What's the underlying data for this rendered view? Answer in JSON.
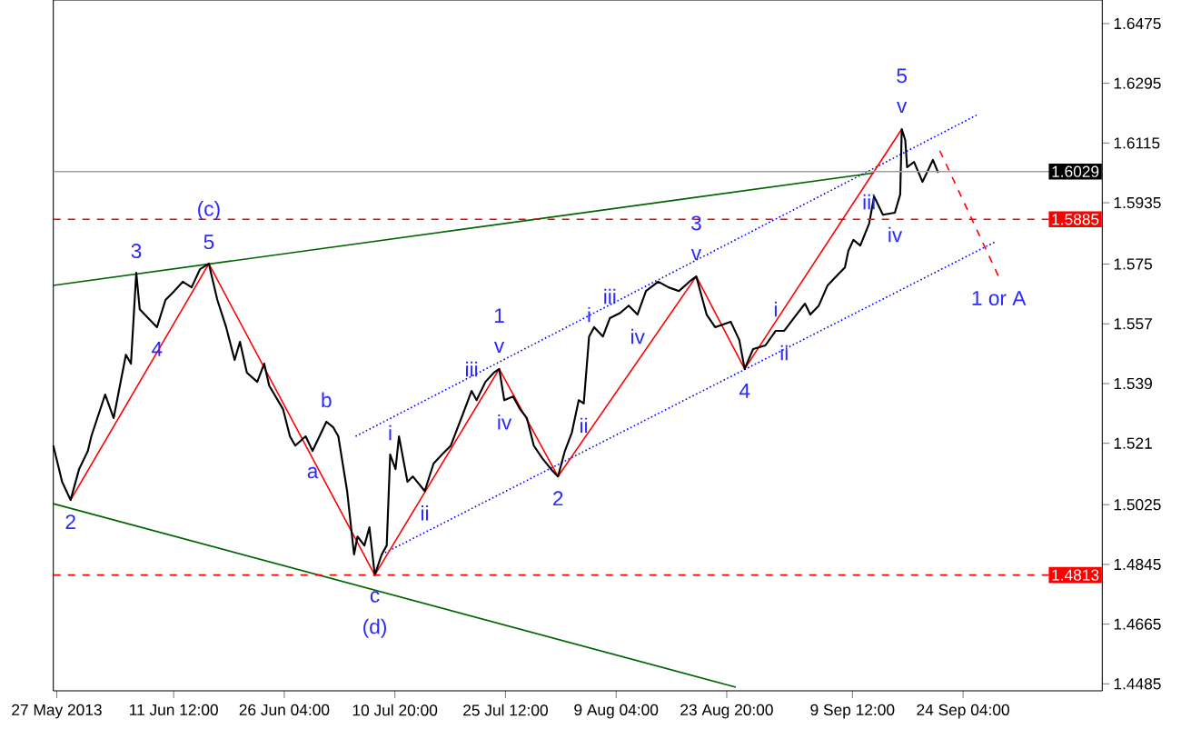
{
  "chart_data": {
    "type": "line",
    "xlim": [
      "2013-05-26T13:00",
      "2013-10-12T15:00"
    ],
    "ylim": [
      1.4464,
      1.6546
    ],
    "xticks": [
      {
        "value": "2013-05-27T00:00",
        "label": "27 May 2013"
      },
      {
        "value": "2013-06-11T12:00",
        "label": "11 Jun 12:00"
      },
      {
        "value": "2013-06-26T04:00",
        "label": "26 Jun 04:00"
      },
      {
        "value": "2013-07-10T20:00",
        "label": "10 Jul 20:00"
      },
      {
        "value": "2013-07-25T12:00",
        "label": "25 Jul 12:00"
      },
      {
        "value": "2013-08-09T04:00",
        "label": "9 Aug 04:00"
      },
      {
        "value": "2013-08-23T20:00",
        "label": "23 Aug 20:00"
      },
      {
        "value": "2013-09-09T12:00",
        "label": "9 Sep 12:00"
      },
      {
        "value": "2013-09-24T04:00",
        "label": "24 Sep 04:00"
      }
    ],
    "yticks": [
      1.4485,
      1.4665,
      1.4845,
      1.5025,
      1.521,
      1.539,
      1.557,
      1.575,
      1.5935,
      1.6115,
      1.6295,
      1.6475
    ],
    "series": [
      {
        "color": "#006400",
        "line_style": "solid",
        "x": [
          "2013-05-26T13:00",
          "2013-09-12T09:00"
        ],
        "values": [
          1.5686,
          1.6025
        ]
      },
      {
        "color": "#006400",
        "line_style": "solid",
        "x": [
          "2013-05-26T13:00",
          "2013-08-25T01:00"
        ],
        "values": [
          1.5028,
          1.4475
        ]
      },
      {
        "color": "#0000ff",
        "line_style": "dotted",
        "x": [
          "2013-07-05T15:00",
          "2013-09-26T03:00"
        ],
        "values": [
          1.5231,
          1.6201
        ]
      },
      {
        "color": "#0000ff",
        "line_style": "dotted",
        "x": [
          "2013-07-09T02:00",
          "2013-09-28T10:00"
        ],
        "values": [
          1.4875,
          1.5817
        ]
      },
      {
        "color": "#ff0000",
        "line_style": "solid",
        "x": [
          "2013-05-28T20:00",
          "2013-06-16T04:00",
          "2013-07-08T04:00",
          "2013-07-24T16:00",
          "2013-08-01T11:00",
          "2013-08-19T19:00",
          "2013-08-26T05:00",
          "2013-09-16T01:00"
        ],
        "values": [
          1.5039,
          1.5751,
          1.4813,
          1.5434,
          1.511,
          1.5713,
          1.5434,
          1.6157
        ]
      },
      {
        "color": "#ff0000",
        "line_style": "dashed",
        "x": [
          "2013-09-21T02:00",
          "2013-09-28T21:00"
        ],
        "values": [
          1.6092,
          1.5713
        ]
      },
      {
        "color": "#000000",
        "line_style": "solid",
        "x": [
          "2013-05-26T13:00",
          "2013-05-27T17:00",
          "2013-05-28T20:00",
          "2013-05-29T23:00",
          "2013-05-31T03:00",
          "2013-05-31T14:00",
          "2013-06-02T10:00",
          "2013-06-03T13:00",
          "2013-06-05T04:00",
          "2013-06-05T20:00",
          "2013-06-06T13:00",
          "2013-06-07T00:00",
          "2013-06-08T03:00",
          "2013-06-09T07:00",
          "2013-06-10T10:00",
          "2013-06-11T14:00",
          "2013-06-12T17:00",
          "2013-06-13T21:00",
          "2013-06-15T00:00",
          "2013-06-16T04:00",
          "2013-06-17T07:00",
          "2013-06-18T11:00",
          "2013-06-19T14:00",
          "2013-06-20T07:00",
          "2013-06-21T05:00",
          "2013-06-22T14:00",
          "2013-06-23T12:00",
          "2013-06-24T04:00",
          "2013-06-26T00:00",
          "2013-06-26T22:00",
          "2013-06-27T15:00",
          "2013-06-29T00:00",
          "2013-06-29T22:00",
          "2013-07-01T18:00",
          "2013-07-02T16:00",
          "2013-07-03T08:00",
          "2013-07-04T12:00",
          "2013-07-05T10:00",
          "2013-07-05T21:00",
          "2013-07-06T19:00",
          "2013-07-07T11:00",
          "2013-07-08T04:00",
          "2013-07-09T02:00",
          "2013-07-09T18:00",
          "2013-07-10T05:00",
          "2013-07-10T22:00",
          "2013-07-11T09:00",
          "2013-07-12T12:00",
          "2013-07-13T05:00",
          "2013-07-14T19:00",
          "2013-07-15T23:00",
          "2013-07-17T02:00",
          "2013-07-18T06:00",
          "2013-07-19T20:00",
          "2013-07-21T00:00",
          "2013-07-21T16:00",
          "2013-07-22T20:00",
          "2013-07-23T23:00",
          "2013-07-24T16:00",
          "2013-07-25T08:00",
          "2013-07-26T12:00",
          "2013-07-27T10:00",
          "2013-07-28T08:00",
          "2013-07-29T06:00",
          "2013-07-30T09:00",
          "2013-07-31T13:00",
          "2013-08-01T11:00",
          "2013-08-02T09:00",
          "2013-08-03T07:00",
          "2013-08-04T05:00",
          "2013-08-04T21:00",
          "2013-08-05T14:00",
          "2013-08-06T06:00",
          "2013-08-07T10:00",
          "2013-08-08T08:00",
          "2013-08-09T17:00",
          "2013-08-10T20:00",
          "2013-08-12T00:00",
          "2013-08-13T03:00",
          "2013-08-14T18:00",
          "2013-08-16T03:00",
          "2013-08-17T12:00",
          "2013-08-18T21:00",
          "2013-08-19T19:00",
          "2013-08-21T04:00",
          "2013-08-22T07:00",
          "2013-08-24T09:00",
          "2013-08-25T12:00",
          "2013-08-26T05:00",
          "2013-08-27T08:00",
          "2013-08-28T23:00",
          "2013-08-30T08:00",
          "2013-08-31T11:00",
          "2013-09-02T02:00",
          "2013-09-03T05:00",
          "2013-09-03T22:00",
          "2013-09-05T01:00",
          "2013-09-06T05:00",
          "2013-09-07T03:00",
          "2013-09-08T12:00",
          "2013-09-08T23:00",
          "2013-09-09T15:00",
          "2013-09-10T13:00",
          "2013-09-11T17:00",
          "2013-09-12T09:00",
          "2013-09-13T13:00",
          "2013-09-15T03:00",
          "2013-09-15T20:00",
          "2013-09-16T01:00",
          "2013-09-16T12:00",
          "2013-09-16T18:00",
          "2013-09-17T16:00",
          "2013-09-18T19:00",
          "2013-09-19T17:00",
          "2013-09-20T04:00",
          "2013-09-20T21:00"
        ],
        "values": [
          1.5203,
          1.5094,
          1.5039,
          1.5132,
          1.5187,
          1.5231,
          1.5357,
          1.5286,
          1.5477,
          1.545,
          1.5724,
          1.5614,
          1.5587,
          1.556,
          1.5642,
          1.5669,
          1.5697,
          1.568,
          1.5735,
          1.5751,
          1.5642,
          1.556,
          1.5461,
          1.5516,
          1.5423,
          1.5395,
          1.545,
          1.5384,
          1.5313,
          1.5231,
          1.5203,
          1.5231,
          1.5187,
          1.5275,
          1.5258,
          1.5231,
          1.5066,
          1.4875,
          1.4929,
          1.4902,
          1.4957,
          1.4813,
          1.4875,
          1.4902,
          1.5176,
          1.5132,
          1.5231,
          1.5094,
          1.511,
          1.5066,
          1.5149,
          1.5176,
          1.5203,
          1.5297,
          1.5368,
          1.534,
          1.5395,
          1.5423,
          1.5434,
          1.534,
          1.5351,
          1.5313,
          1.5286,
          1.5203,
          1.5165,
          1.5132,
          1.511,
          1.5187,
          1.5242,
          1.534,
          1.533,
          1.5532,
          1.556,
          1.5532,
          1.5587,
          1.5603,
          1.5625,
          1.5598,
          1.5669,
          1.5697,
          1.568,
          1.5669,
          1.5697,
          1.5713,
          1.5598,
          1.556,
          1.5576,
          1.5521,
          1.5434,
          1.5494,
          1.5505,
          1.5549,
          1.5549,
          1.5598,
          1.5631,
          1.5598,
          1.5625,
          1.5686,
          1.5708,
          1.574,
          1.579,
          1.5823,
          1.5806,
          1.5872,
          1.5954,
          1.5899,
          1.5905,
          1.596,
          1.6157,
          1.6124,
          1.6042,
          1.6058,
          1.5998,
          1.6042,
          1.6064,
          1.6025
        ]
      }
    ],
    "ref_lines": [
      {
        "axis": "y",
        "value": 1.6029,
        "label": "1.6029",
        "color": "#a0a0a0",
        "line_style": "solid"
      },
      {
        "axis": "y",
        "value": 1.5885,
        "label": "1.5885",
        "color": "#ff0000",
        "line_style": "dashed"
      },
      {
        "axis": "y",
        "value": 1.4813,
        "label": "1.4813",
        "color": "#ff0000",
        "line_style": "dashed"
      }
    ],
    "annotations": [
      {
        "text": "2",
        "x": "2013-05-28T20:00",
        "y": 1.5039
      },
      {
        "text": "3",
        "x": "2013-06-06T13:00",
        "y": 1.5724
      },
      {
        "text": "4",
        "x": "2013-06-09T07:00",
        "y": 1.556
      },
      {
        "text": "5",
        "x": "2013-06-16T04:00",
        "y": 1.5751
      },
      {
        "text": "(c)",
        "x": "2013-06-16T04:00",
        "y": 1.5751
      },
      {
        "text": "a",
        "x": "2013-06-29T22:00",
        "y": 1.5187
      },
      {
        "text": "b",
        "x": "2013-07-01T18:00",
        "y": 1.5275
      },
      {
        "text": "c",
        "x": "2013-07-08T04:00",
        "y": 1.4813
      },
      {
        "text": "(d)",
        "x": "2013-07-08T04:00",
        "y": 1.4813
      },
      {
        "text": "i",
        "x": "2013-07-10T05:00",
        "y": 1.5176
      },
      {
        "text": "ii",
        "x": "2013-07-14T19:00",
        "y": 1.5066
      },
      {
        "text": "iii",
        "x": "2013-07-21T00:00",
        "y": 1.5368
      },
      {
        "text": "iv",
        "x": "2013-07-25T08:00",
        "y": 1.534
      },
      {
        "text": "v",
        "x": "2013-07-24T16:00",
        "y": 1.5434
      },
      {
        "text": "1",
        "x": "2013-07-24T16:00",
        "y": 1.5434
      },
      {
        "text": "2",
        "x": "2013-08-01T11:00",
        "y": 1.511
      },
      {
        "text": "i",
        "x": "2013-08-05T14:00",
        "y": 1.5532
      },
      {
        "text": "ii",
        "x": "2013-08-04T21:00",
        "y": 1.533
      },
      {
        "text": "iii",
        "x": "2013-08-08T08:00",
        "y": 1.5587
      },
      {
        "text": "iv",
        "x": "2013-08-12T00:00",
        "y": 1.5598
      },
      {
        "text": "v",
        "x": "2013-08-19T19:00",
        "y": 1.5713
      },
      {
        "text": "3",
        "x": "2013-08-19T19:00",
        "y": 1.5713
      },
      {
        "text": "4",
        "x": "2013-08-26T05:00",
        "y": 1.5434
      },
      {
        "text": "i",
        "x": "2013-08-30T08:00",
        "y": 1.5549
      },
      {
        "text": "ii",
        "x": "2013-08-31T11:00",
        "y": 1.5549
      },
      {
        "text": "iii",
        "x": "2013-09-11T17:00",
        "y": 1.5872
      },
      {
        "text": "iv",
        "x": "2013-09-15T03:00",
        "y": 1.5905
      },
      {
        "text": "v",
        "x": "2013-09-16T01:00",
        "y": 1.6157
      },
      {
        "text": "5",
        "x": "2013-09-16T01:00",
        "y": 1.6157
      },
      {
        "text": "1 or A",
        "x": "2013-09-28T21:00",
        "y": 1.5713
      }
    ]
  }
}
